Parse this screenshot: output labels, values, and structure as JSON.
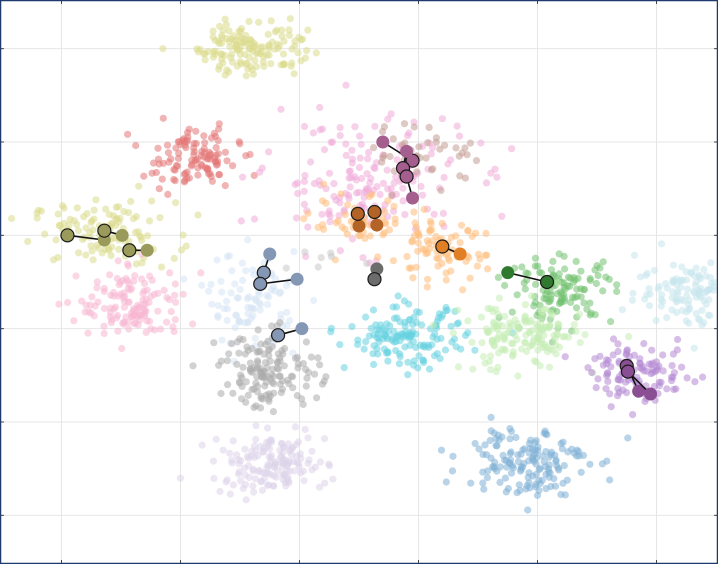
{
  "chart_data": {
    "type": "scatter",
    "title": "",
    "xlabel": "",
    "ylabel": "",
    "xlim": [
      -30,
      30
    ],
    "ylim": [
      -30,
      30
    ],
    "xticks": [
      -25,
      -15,
      -5,
      5,
      15,
      25
    ],
    "yticks": [
      -25,
      -15,
      -5,
      5,
      15,
      25
    ],
    "grid": true,
    "legend": "none",
    "colors": {
      "frame": "#1f3a6e",
      "grid": "#e6e6e6",
      "tick": "#444444",
      "marker_edge": "#1a1a1a",
      "arrow": "#111111"
    },
    "clusters": [
      {
        "cx": -21.5,
        "cy": 5.2,
        "sx": 3.0,
        "sy": 1.7,
        "n": 110,
        "color": "#dbdb8d"
      },
      {
        "cx": -9.0,
        "cy": 25.2,
        "sx": 2.3,
        "sy": 1.5,
        "n": 140,
        "color": "#dbdb8d"
      },
      {
        "cx": -14.0,
        "cy": 13.2,
        "sx": 2.0,
        "sy": 1.6,
        "n": 110,
        "color": "#e37777"
      },
      {
        "cx": 0.6,
        "cy": 11.0,
        "sx": 4.2,
        "sy": 3.4,
        "n": 170,
        "color": "#f0aad8"
      },
      {
        "cx": 5.6,
        "cy": 13.8,
        "sx": 2.4,
        "sy": 1.5,
        "n": 45,
        "color": "#c49c94"
      },
      {
        "cx": 0.0,
        "cy": 6.2,
        "sx": 2.0,
        "sy": 1.5,
        "n": 50,
        "color": "#ffbb78"
      },
      {
        "cx": 6.6,
        "cy": 3.3,
        "sx": 2.0,
        "sy": 1.6,
        "n": 80,
        "color": "#ffbb78"
      },
      {
        "cx": 17.0,
        "cy": -0.8,
        "sx": 2.2,
        "sy": 1.7,
        "n": 120,
        "color": "#71c16f"
      },
      {
        "cx": 28.0,
        "cy": -1.0,
        "sx": 2.3,
        "sy": 1.8,
        "n": 120,
        "color": "#c7e6ed"
      },
      {
        "cx": -19.0,
        "cy": -2.5,
        "sx": 2.3,
        "sy": 2.0,
        "n": 130,
        "color": "#f7b6d2"
      },
      {
        "cx": -9.0,
        "cy": -1.8,
        "sx": 1.9,
        "sy": 2.4,
        "n": 90,
        "color": "#d6e4f4"
      },
      {
        "cx": 4.0,
        "cy": -6.0,
        "sx": 2.5,
        "sy": 1.6,
        "n": 140,
        "color": "#66d1e0"
      },
      {
        "cx": 13.7,
        "cy": -6.0,
        "sx": 2.5,
        "sy": 1.8,
        "n": 150,
        "color": "#c5ecb5"
      },
      {
        "cx": -7.5,
        "cy": -9.5,
        "sx": 2.1,
        "sy": 2.0,
        "n": 140,
        "color": "#acacac"
      },
      {
        "cx": 23.7,
        "cy": -9.8,
        "sx": 2.1,
        "sy": 1.5,
        "n": 110,
        "color": "#b589d4"
      },
      {
        "cx": -7.5,
        "cy": -19.5,
        "sx": 2.4,
        "sy": 1.6,
        "n": 150,
        "color": "#ddd4ea"
      },
      {
        "cx": 14.0,
        "cy": -19.0,
        "sx": 2.6,
        "sy": 1.9,
        "n": 150,
        "color": "#7fb0d6"
      },
      {
        "cx": -4.0,
        "cy": 2.0,
        "sx": 1.8,
        "sy": 1.3,
        "n": 8,
        "color": "#c8c8c8"
      }
    ],
    "prototypes": [
      {
        "color": "#9a9a5a",
        "outlined": [
          -24.5,
          5.0
        ],
        "filled": [
          -21.4,
          4.5
        ]
      },
      {
        "color": "#9a9a5a",
        "outlined": [
          -21.4,
          5.5
        ],
        "filled": [
          -19.9,
          5.0
        ]
      },
      {
        "color": "#9a9a5a",
        "outlined": [
          -19.3,
          3.4
        ],
        "filled": [
          -17.8,
          3.4
        ]
      },
      {
        "color": "#a45f8f",
        "outlined": [
          4.5,
          13.0
        ],
        "filled": [
          2.0,
          15.0
        ]
      },
      {
        "color": "#a45f8f",
        "outlined": [
          3.7,
          12.2
        ],
        "filled": [
          4.0,
          14.0
        ]
      },
      {
        "color": "#a45f8f",
        "outlined": [
          4.0,
          11.3
        ],
        "filled": [
          4.5,
          9.0
        ]
      },
      {
        "color": "#b26325",
        "outlined": [
          -0.1,
          7.3
        ],
        "filled": [
          0.0,
          6.0
        ]
      },
      {
        "color": "#b26325",
        "outlined": [
          1.3,
          7.5
        ],
        "filled": [
          1.5,
          6.1
        ]
      },
      {
        "color": "#e07f25",
        "outlined": [
          7.0,
          3.8
        ],
        "filled": [
          8.5,
          3.0
        ]
      },
      {
        "color": "#2f7a2f",
        "outlined": [
          15.8,
          0.0
        ],
        "filled": [
          12.5,
          1.0
        ]
      },
      {
        "color": "#6c6c6c",
        "outlined": [
          1.3,
          0.3
        ],
        "filled": [
          1.5,
          1.4
        ]
      },
      {
        "color": "#8497b4",
        "outlined": [
          -8.0,
          1.0
        ],
        "filled": [
          -7.5,
          3.0
        ]
      },
      {
        "color": "#8497b4",
        "outlined": [
          -8.3,
          -0.2
        ],
        "filled": [
          -5.2,
          0.3
        ]
      },
      {
        "color": "#8497b4",
        "outlined": [
          -6.8,
          -5.7
        ],
        "filled": [
          -4.8,
          -5.0
        ]
      },
      {
        "color": "#8a4f93",
        "outlined": [
          22.5,
          -9.0
        ],
        "filled": [
          23.5,
          -11.7
        ]
      },
      {
        "color": "#8a4f93",
        "outlined": [
          22.6,
          -9.6
        ],
        "filled": [
          24.5,
          -12.0
        ]
      }
    ]
  }
}
